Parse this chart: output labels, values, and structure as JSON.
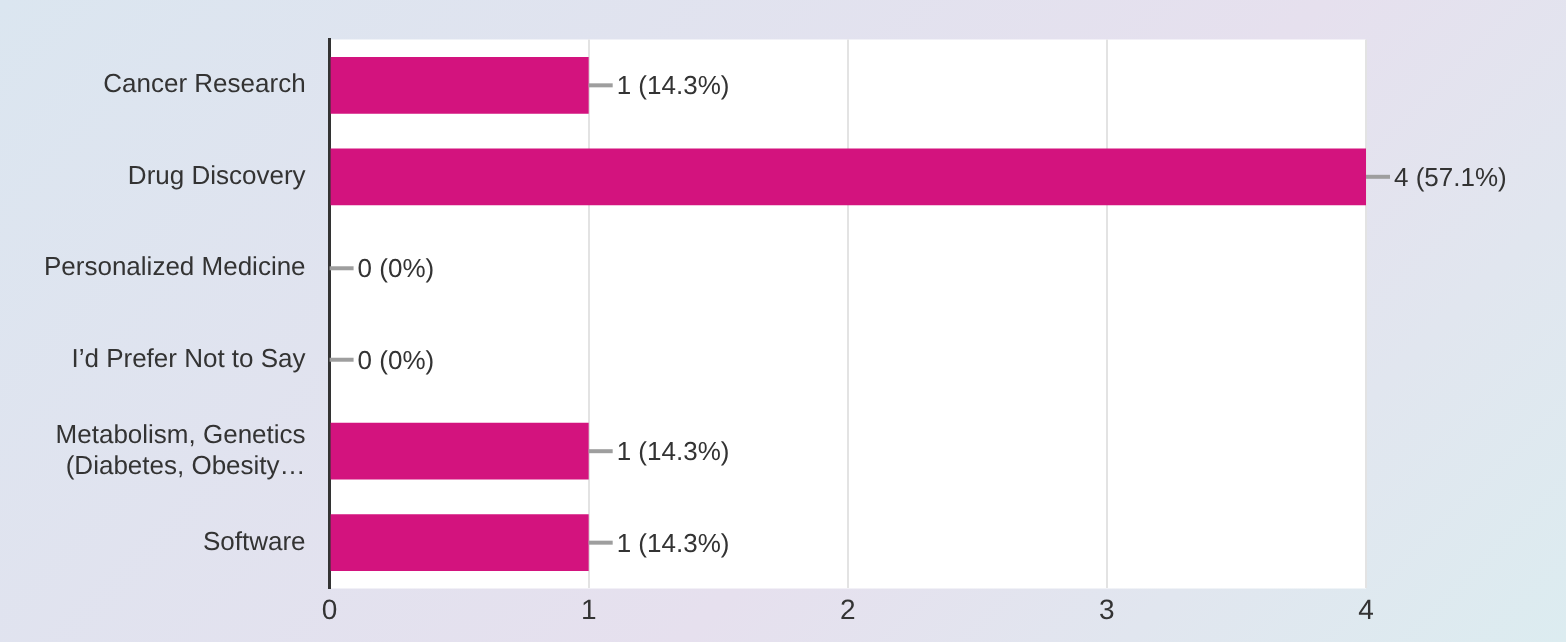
{
  "chart_data": {
    "type": "bar",
    "orientation": "horizontal",
    "categories": [
      "Cancer Research",
      "Drug Discovery",
      "Personalized Medicine",
      "I’d Prefer Not to Say",
      "Metabolism, Genetics (Diabetes, Obesity…",
      "Software"
    ],
    "values": [
      1,
      4,
      0,
      0,
      1,
      1
    ],
    "value_labels": [
      "1 (14.3%)",
      "4 (57.1%)",
      "0 (0%)",
      "0 (0%)",
      "1 (14.3%)",
      "1 (14.3%)"
    ],
    "color": "#d3137e",
    "xlim": [
      0,
      4
    ],
    "xticks": [
      0,
      1,
      2,
      3,
      4
    ],
    "grid": "x",
    "legend": false
  }
}
